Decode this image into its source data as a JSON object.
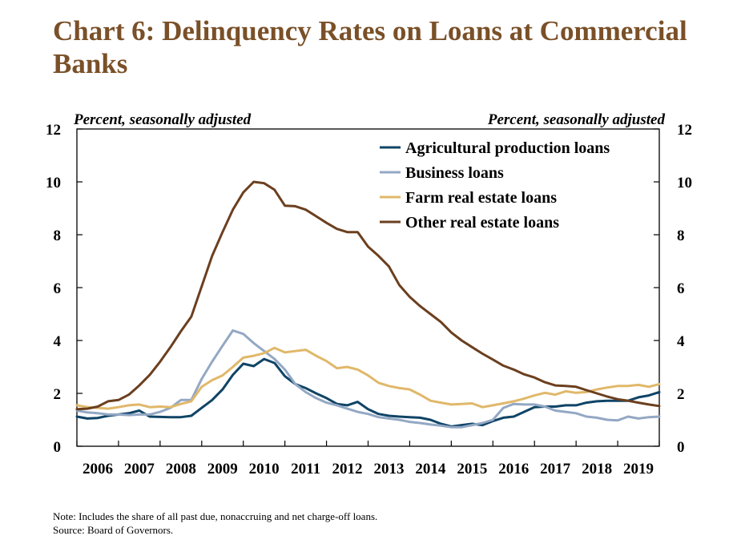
{
  "chart_data": {
    "type": "line",
    "title": "Chart 6: Delinquency Rates on Loans at Commercial Banks",
    "ylabel_left": "Percent, seasonally adjusted",
    "ylabel_right": "Percent, seasonally adjusted",
    "ylim": [
      0,
      12
    ],
    "y_ticks": [
      "0",
      "2",
      "4",
      "6",
      "8",
      "10",
      "12"
    ],
    "x_ticks": [
      "2006",
      "2007",
      "2008",
      "2009",
      "2010",
      "2011",
      "2012",
      "2013",
      "2014",
      "2015",
      "2016",
      "2017",
      "2018",
      "2019"
    ],
    "xlim": [
      2006,
      2020
    ],
    "grid": false,
    "legend_position": "top-right",
    "series": [
      {
        "name": "Agricultural production loans",
        "color": "#0f4466",
        "points": [
          [
            2006.0,
            1.12
          ],
          [
            2006.25,
            1.05
          ],
          [
            2006.5,
            1.07
          ],
          [
            2006.75,
            1.15
          ],
          [
            2007.0,
            1.2
          ],
          [
            2007.25,
            1.25
          ],
          [
            2007.5,
            1.35
          ],
          [
            2007.75,
            1.12
          ],
          [
            2008.0,
            1.11
          ],
          [
            2008.25,
            1.1
          ],
          [
            2008.5,
            1.1
          ],
          [
            2008.75,
            1.15
          ],
          [
            2009.0,
            1.45
          ],
          [
            2009.25,
            1.75
          ],
          [
            2009.5,
            2.15
          ],
          [
            2009.75,
            2.7
          ],
          [
            2010.0,
            3.12
          ],
          [
            2010.25,
            3.03
          ],
          [
            2010.5,
            3.3
          ],
          [
            2010.75,
            3.15
          ],
          [
            2011.0,
            2.65
          ],
          [
            2011.25,
            2.35
          ],
          [
            2011.5,
            2.2
          ],
          [
            2011.75,
            2.0
          ],
          [
            2012.0,
            1.82
          ],
          [
            2012.25,
            1.6
          ],
          [
            2012.5,
            1.55
          ],
          [
            2012.75,
            1.68
          ],
          [
            2013.0,
            1.4
          ],
          [
            2013.25,
            1.22
          ],
          [
            2013.5,
            1.15
          ],
          [
            2013.75,
            1.12
          ],
          [
            2014.0,
            1.1
          ],
          [
            2014.25,
            1.08
          ],
          [
            2014.5,
            1.0
          ],
          [
            2014.75,
            0.85
          ],
          [
            2015.0,
            0.75
          ],
          [
            2015.25,
            0.8
          ],
          [
            2015.5,
            0.85
          ],
          [
            2015.75,
            0.8
          ],
          [
            2016.0,
            0.95
          ],
          [
            2016.25,
            1.08
          ],
          [
            2016.5,
            1.12
          ],
          [
            2016.75,
            1.3
          ],
          [
            2017.0,
            1.48
          ],
          [
            2017.25,
            1.5
          ],
          [
            2017.5,
            1.5
          ],
          [
            2017.75,
            1.55
          ],
          [
            2018.0,
            1.55
          ],
          [
            2018.25,
            1.65
          ],
          [
            2018.5,
            1.7
          ],
          [
            2018.75,
            1.72
          ],
          [
            2019.0,
            1.72
          ],
          [
            2019.25,
            1.72
          ],
          [
            2019.5,
            1.85
          ],
          [
            2019.75,
            1.92
          ],
          [
            2020.0,
            2.05
          ]
        ]
      },
      {
        "name": "Business loans",
        "color": "#93a8c4",
        "points": [
          [
            2006.0,
            1.35
          ],
          [
            2006.25,
            1.28
          ],
          [
            2006.5,
            1.25
          ],
          [
            2006.75,
            1.2
          ],
          [
            2007.0,
            1.2
          ],
          [
            2007.25,
            1.18
          ],
          [
            2007.5,
            1.2
          ],
          [
            2007.75,
            1.2
          ],
          [
            2008.0,
            1.3
          ],
          [
            2008.25,
            1.45
          ],
          [
            2008.5,
            1.75
          ],
          [
            2008.75,
            1.75
          ],
          [
            2009.0,
            2.55
          ],
          [
            2009.25,
            3.2
          ],
          [
            2009.5,
            3.8
          ],
          [
            2009.75,
            4.38
          ],
          [
            2010.0,
            4.25
          ],
          [
            2010.25,
            3.9
          ],
          [
            2010.5,
            3.6
          ],
          [
            2010.75,
            3.3
          ],
          [
            2011.0,
            2.9
          ],
          [
            2011.25,
            2.35
          ],
          [
            2011.5,
            2.05
          ],
          [
            2011.75,
            1.82
          ],
          [
            2012.0,
            1.65
          ],
          [
            2012.25,
            1.55
          ],
          [
            2012.5,
            1.42
          ],
          [
            2012.75,
            1.3
          ],
          [
            2013.0,
            1.22
          ],
          [
            2013.25,
            1.1
          ],
          [
            2013.5,
            1.05
          ],
          [
            2013.75,
            1.0
          ],
          [
            2014.0,
            0.92
          ],
          [
            2014.25,
            0.88
          ],
          [
            2014.5,
            0.82
          ],
          [
            2014.75,
            0.78
          ],
          [
            2015.0,
            0.72
          ],
          [
            2015.25,
            0.72
          ],
          [
            2015.5,
            0.8
          ],
          [
            2015.75,
            0.88
          ],
          [
            2016.0,
            1.0
          ],
          [
            2016.25,
            1.45
          ],
          [
            2016.5,
            1.6
          ],
          [
            2016.75,
            1.58
          ],
          [
            2017.0,
            1.58
          ],
          [
            2017.25,
            1.5
          ],
          [
            2017.5,
            1.35
          ],
          [
            2017.75,
            1.3
          ],
          [
            2018.0,
            1.25
          ],
          [
            2018.25,
            1.12
          ],
          [
            2018.5,
            1.08
          ],
          [
            2018.75,
            1.0
          ],
          [
            2019.0,
            0.98
          ],
          [
            2019.25,
            1.12
          ],
          [
            2019.5,
            1.05
          ],
          [
            2019.75,
            1.1
          ],
          [
            2020.0,
            1.12
          ]
        ]
      },
      {
        "name": "Farm real estate loans",
        "color": "#e0b86a",
        "points": [
          [
            2006.0,
            1.55
          ],
          [
            2006.25,
            1.48
          ],
          [
            2006.5,
            1.45
          ],
          [
            2006.75,
            1.42
          ],
          [
            2007.0,
            1.48
          ],
          [
            2007.25,
            1.55
          ],
          [
            2007.5,
            1.58
          ],
          [
            2007.75,
            1.48
          ],
          [
            2008.0,
            1.5
          ],
          [
            2008.25,
            1.48
          ],
          [
            2008.5,
            1.6
          ],
          [
            2008.75,
            1.7
          ],
          [
            2009.0,
            2.25
          ],
          [
            2009.25,
            2.5
          ],
          [
            2009.5,
            2.68
          ],
          [
            2009.75,
            3.0
          ],
          [
            2010.0,
            3.35
          ],
          [
            2010.25,
            3.42
          ],
          [
            2010.5,
            3.52
          ],
          [
            2010.75,
            3.72
          ],
          [
            2011.0,
            3.55
          ],
          [
            2011.25,
            3.6
          ],
          [
            2011.5,
            3.65
          ],
          [
            2011.75,
            3.42
          ],
          [
            2012.0,
            3.22
          ],
          [
            2012.25,
            2.95
          ],
          [
            2012.5,
            3.0
          ],
          [
            2012.75,
            2.9
          ],
          [
            2013.0,
            2.68
          ],
          [
            2013.25,
            2.4
          ],
          [
            2013.5,
            2.28
          ],
          [
            2013.75,
            2.2
          ],
          [
            2014.0,
            2.15
          ],
          [
            2014.25,
            1.95
          ],
          [
            2014.5,
            1.72
          ],
          [
            2014.75,
            1.65
          ],
          [
            2015.0,
            1.58
          ],
          [
            2015.25,
            1.6
          ],
          [
            2015.5,
            1.62
          ],
          [
            2015.75,
            1.48
          ],
          [
            2016.0,
            1.55
          ],
          [
            2016.25,
            1.62
          ],
          [
            2016.5,
            1.7
          ],
          [
            2016.75,
            1.8
          ],
          [
            2017.0,
            1.92
          ],
          [
            2017.25,
            2.02
          ],
          [
            2017.5,
            1.95
          ],
          [
            2017.75,
            2.08
          ],
          [
            2018.0,
            2.02
          ],
          [
            2018.25,
            2.05
          ],
          [
            2018.5,
            2.15
          ],
          [
            2018.75,
            2.22
          ],
          [
            2019.0,
            2.28
          ],
          [
            2019.25,
            2.28
          ],
          [
            2019.5,
            2.32
          ],
          [
            2019.75,
            2.25
          ],
          [
            2020.0,
            2.35
          ]
        ]
      },
      {
        "name": "Other real estate loans",
        "color": "#6b3f1f",
        "points": [
          [
            2006.0,
            1.4
          ],
          [
            2006.25,
            1.42
          ],
          [
            2006.5,
            1.5
          ],
          [
            2006.75,
            1.7
          ],
          [
            2007.0,
            1.75
          ],
          [
            2007.25,
            1.95
          ],
          [
            2007.5,
            2.3
          ],
          [
            2007.75,
            2.7
          ],
          [
            2008.0,
            3.2
          ],
          [
            2008.25,
            3.75
          ],
          [
            2008.5,
            4.35
          ],
          [
            2008.75,
            4.9
          ],
          [
            2009.0,
            6.05
          ],
          [
            2009.25,
            7.2
          ],
          [
            2009.5,
            8.1
          ],
          [
            2009.75,
            8.95
          ],
          [
            2010.0,
            9.6
          ],
          [
            2010.25,
            10.0
          ],
          [
            2010.5,
            9.95
          ],
          [
            2010.75,
            9.7
          ],
          [
            2011.0,
            9.1
          ],
          [
            2011.25,
            9.08
          ],
          [
            2011.5,
            8.95
          ],
          [
            2011.75,
            8.7
          ],
          [
            2012.0,
            8.45
          ],
          [
            2012.25,
            8.22
          ],
          [
            2012.5,
            8.1
          ],
          [
            2012.75,
            8.1
          ],
          [
            2013.0,
            7.55
          ],
          [
            2013.25,
            7.2
          ],
          [
            2013.5,
            6.8
          ],
          [
            2013.75,
            6.1
          ],
          [
            2014.0,
            5.65
          ],
          [
            2014.25,
            5.3
          ],
          [
            2014.5,
            5.0
          ],
          [
            2014.75,
            4.7
          ],
          [
            2015.0,
            4.3
          ],
          [
            2015.25,
            4.0
          ],
          [
            2015.5,
            3.75
          ],
          [
            2015.75,
            3.5
          ],
          [
            2016.0,
            3.28
          ],
          [
            2016.25,
            3.05
          ],
          [
            2016.5,
            2.9
          ],
          [
            2016.75,
            2.72
          ],
          [
            2017.0,
            2.6
          ],
          [
            2017.25,
            2.42
          ],
          [
            2017.5,
            2.3
          ],
          [
            2017.75,
            2.28
          ],
          [
            2018.0,
            2.25
          ],
          [
            2018.25,
            2.12
          ],
          [
            2018.5,
            2.0
          ],
          [
            2018.75,
            1.88
          ],
          [
            2019.0,
            1.78
          ],
          [
            2019.25,
            1.72
          ],
          [
            2019.5,
            1.65
          ],
          [
            2019.75,
            1.58
          ],
          [
            2020.0,
            1.52
          ]
        ]
      }
    ]
  },
  "note": "Note: Includes the share of all past due, nonaccruing and net charge-off loans.",
  "source": "Source: Board of Governors."
}
